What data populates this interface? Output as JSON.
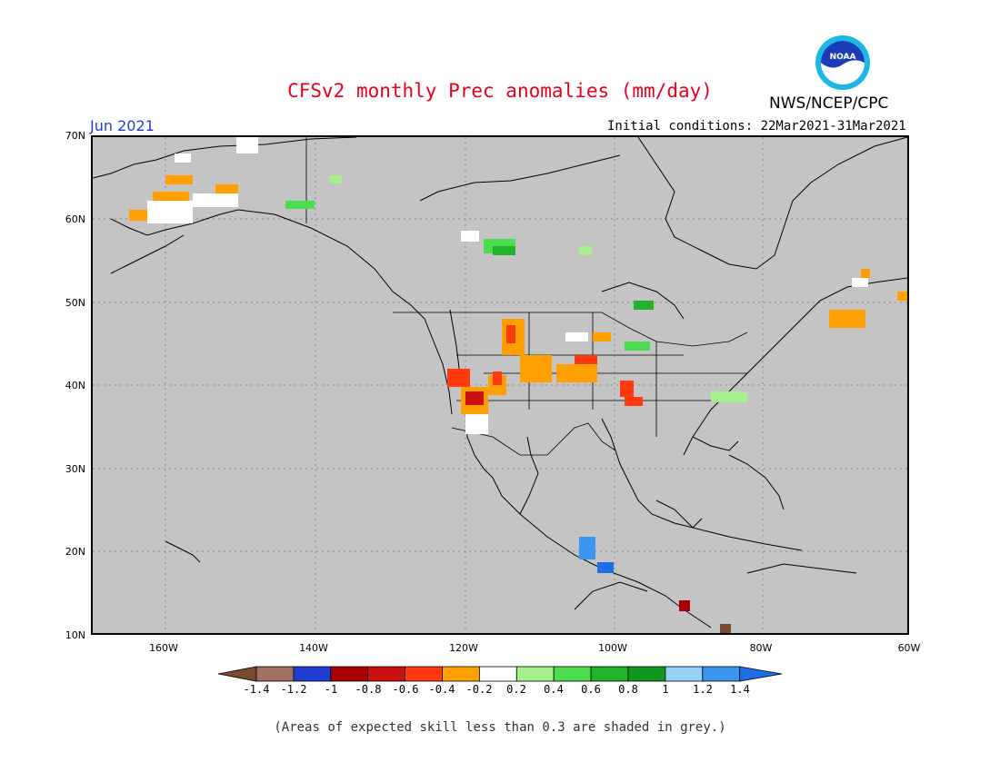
{
  "header": {
    "title": "CFSv2 monthly Prec anomalies (mm/day)",
    "organization": "NWS/NCEP/CPC",
    "logo_text": "NOAA",
    "month": "Jun 2021",
    "initial_conditions": "Initial conditions: 22Mar2021-31Mar2021"
  },
  "map": {
    "lat_labels": [
      "70N",
      "60N",
      "50N",
      "40N",
      "30N",
      "20N",
      "10N"
    ],
    "lon_labels": [
      "160W",
      "140W",
      "120W",
      "100W",
      "80W",
      "60W"
    ],
    "background_color": "#c4c4c4"
  },
  "colorbar": {
    "labels": [
      "-1.4",
      "-1.2",
      "-1",
      "-0.8",
      "-0.6",
      "-0.4",
      "-0.2",
      "0.2",
      "0.4",
      "0.6",
      "0.8",
      "1",
      "1.2",
      "1.4"
    ],
    "colors": [
      "#7a4a2e",
      "#a07060",
      "#1e3ccf",
      "#a80000",
      "#cc1010",
      "#ff3a10",
      "#ff9f00",
      "#ffffff",
      "#a6f08c",
      "#4cdc50",
      "#20b428",
      "#0f9a1e",
      "#96d2fa",
      "#3c96f0",
      "#1e6ee6"
    ]
  },
  "footnote": "(Areas of expected skill less than 0.3 are shaded in grey.)"
}
